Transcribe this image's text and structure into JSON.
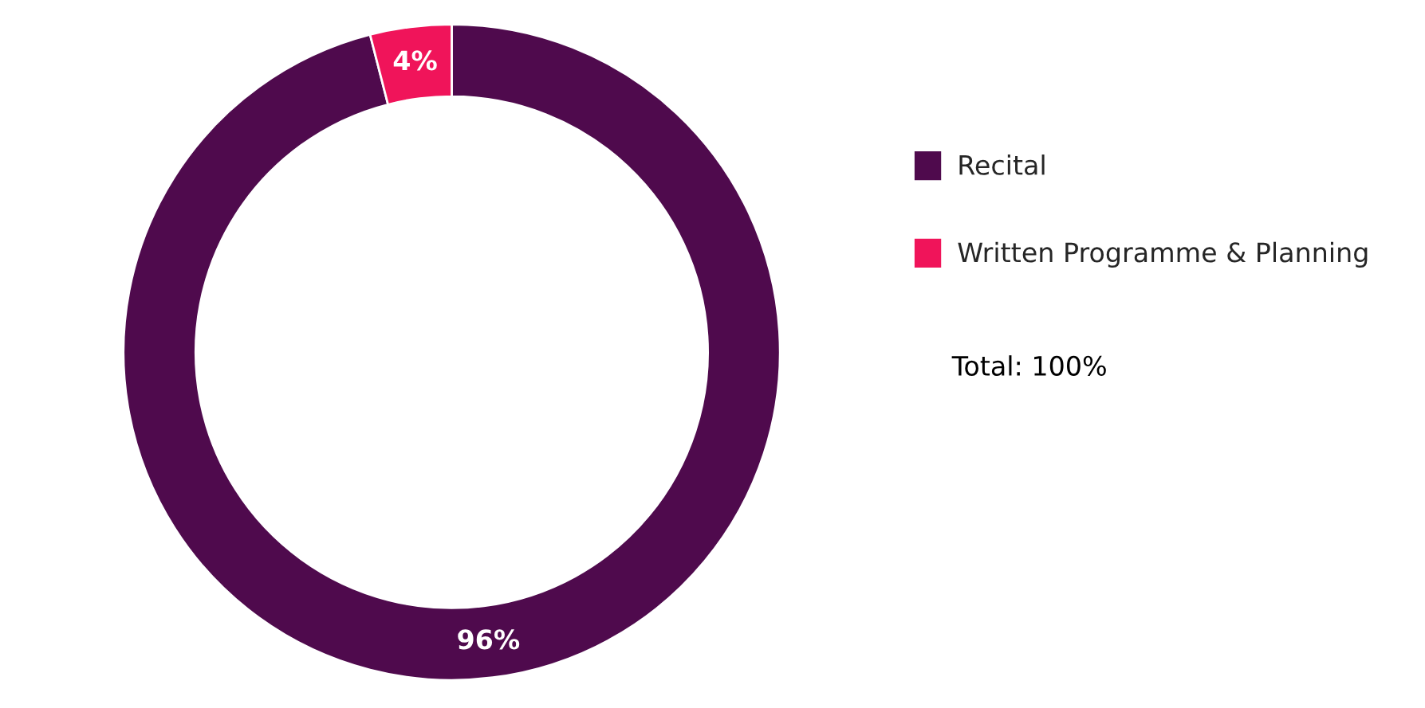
{
  "chart_data": {
    "type": "donut",
    "categories": [
      "Recital",
      "Written Programme & Planning"
    ],
    "values": [
      96,
      4
    ],
    "colors": [
      "#4f0a4d",
      "#f0145a"
    ],
    "value_labels": [
      "96%",
      "4%"
    ],
    "legend": "right",
    "annotations": [
      "Total: 100%"
    ]
  }
}
